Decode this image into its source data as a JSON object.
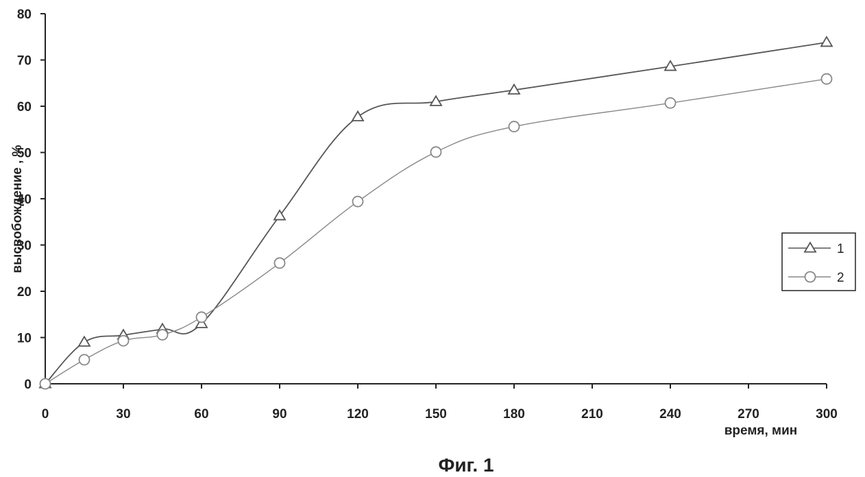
{
  "chart_data": {
    "type": "line",
    "title": "",
    "xlabel": "время, мин",
    "ylabel": "высвобождение , %",
    "xlim": [
      0,
      300
    ],
    "ylim": [
      0,
      80
    ],
    "x_ticks": [
      0,
      30,
      60,
      90,
      120,
      150,
      180,
      210,
      240,
      270,
      300
    ],
    "y_ticks": [
      0,
      10,
      20,
      30,
      40,
      50,
      60,
      70,
      80
    ],
    "grid": false,
    "legend_position": "right",
    "series": [
      {
        "name": "1",
        "marker": "triangle",
        "color": "#555555",
        "smooth": true,
        "x": [
          0,
          15,
          30,
          45,
          60,
          90,
          120,
          150,
          180,
          240,
          300
        ],
        "y": [
          0,
          9,
          10.5,
          11.8,
          13,
          36.3,
          57.7,
          61,
          63.5,
          68.6,
          73.8
        ]
      },
      {
        "name": "2",
        "marker": "circle",
        "color": "#888888",
        "smooth": true,
        "x": [
          0,
          15,
          30,
          45,
          60,
          90,
          120,
          150,
          180,
          240,
          300
        ],
        "y": [
          0,
          5.2,
          9.3,
          10.6,
          14.4,
          26.1,
          39.4,
          50.1,
          55.6,
          60.7,
          65.9
        ]
      }
    ]
  },
  "caption": "Фиг. 1"
}
